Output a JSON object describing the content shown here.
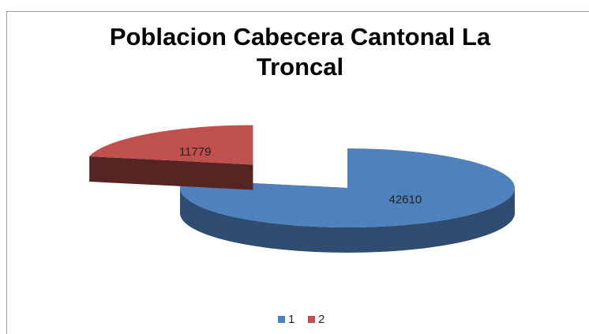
{
  "chart_data": {
    "type": "pie3d",
    "title": "Poblacion Cabecera Cantonal La Troncal",
    "categories": [
      "1",
      "2"
    ],
    "values": [
      42610,
      11779
    ],
    "colors": [
      "#4f81bd",
      "#c0504d"
    ],
    "legend": "bottom"
  }
}
